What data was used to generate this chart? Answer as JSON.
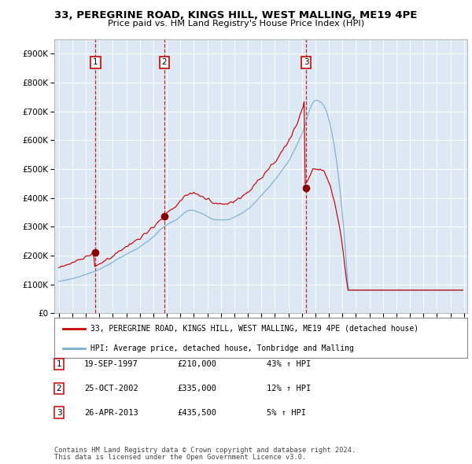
{
  "title": "33, PEREGRINE ROAD, KINGS HILL, WEST MALLING, ME19 4PE",
  "subtitle": "Price paid vs. HM Land Registry's House Price Index (HPI)",
  "red_color": "#cc0000",
  "blue_color": "#7aadce",
  "sale_prices": [
    210000,
    335000,
    435500
  ],
  "sale_label_nums": [
    "1",
    "2",
    "3"
  ],
  "legend_line1": "33, PEREGRINE ROAD, KINGS HILL, WEST MALLING, ME19 4PE (detached house)",
  "legend_line2": "HPI: Average price, detached house, Tonbridge and Malling",
  "table_rows": [
    [
      "1",
      "19-SEP-1997",
      "£210,000",
      "43% ↑ HPI"
    ],
    [
      "2",
      "25-OCT-2002",
      "£335,000",
      "12% ↑ HPI"
    ],
    [
      "3",
      "26-APR-2013",
      "£435,500",
      "5% ↑ HPI"
    ]
  ],
  "footer_line1": "Contains HM Land Registry data © Crown copyright and database right 2024.",
  "footer_line2": "This data is licensed under the Open Government Licence v3.0.",
  "ylim": [
    0,
    950000
  ],
  "yticks": [
    0,
    100000,
    200000,
    300000,
    400000,
    500000,
    600000,
    700000,
    800000,
    900000
  ],
  "xstart_year": 1995,
  "xend_year": 2025
}
